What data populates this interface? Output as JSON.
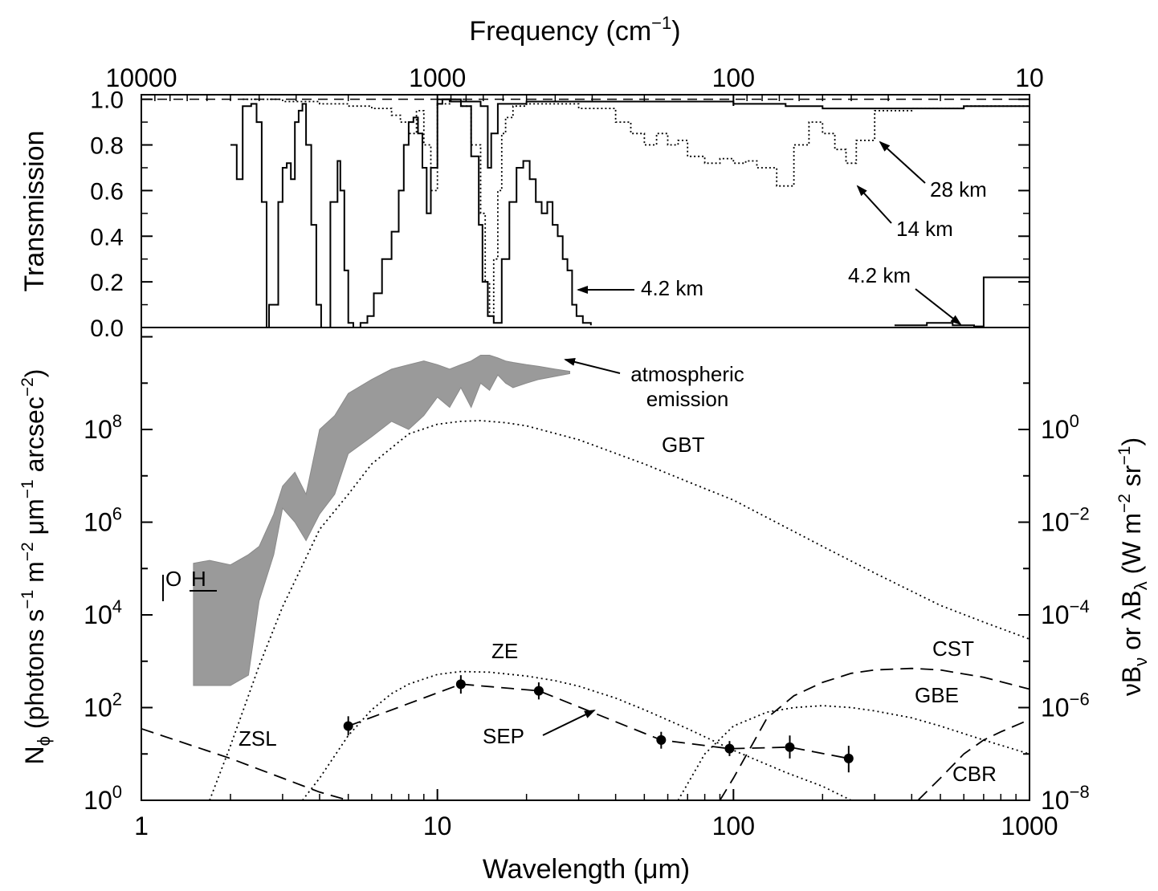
{
  "chart_data": [
    {
      "type": "line",
      "panel": "top",
      "xlabel_top": "Frequency (cm",
      "xlabel_top_sup": "−1",
      "xlabel_top_close": ")",
      "ylabel": "Transmission",
      "x_scale": "log",
      "xlim_um": [
        1,
        1000
      ],
      "ylim": [
        0.0,
        1.0
      ],
      "frequency_ticks": [
        "10000",
        "1000",
        "100",
        "10"
      ],
      "frequency_tick_values_cm-1": [
        10000,
        1000,
        100,
        10
      ],
      "y_ticks": [
        "0.0",
        "0.2",
        "0.4",
        "0.6",
        "0.8",
        "1.0"
      ],
      "y_tick_values": [
        0.0,
        0.2,
        0.4,
        0.6,
        0.8,
        1.0
      ],
      "series": [
        {
          "name": "4.2 km",
          "style": "solid",
          "x": [
            2.0,
            2.1,
            2.2,
            2.35,
            2.45,
            2.55,
            2.65,
            2.7,
            2.9,
            3.0,
            3.1,
            3.2,
            3.3,
            3.4,
            3.5,
            3.6,
            3.75,
            3.9,
            4.05,
            4.2,
            4.35,
            4.6,
            4.7,
            4.85,
            5.0,
            5.2,
            5.5,
            5.8,
            6.1,
            6.5,
            7.0,
            7.4,
            7.7,
            8.0,
            8.3,
            8.6,
            8.9,
            9.2,
            9.5,
            10.0,
            10.4,
            11.0,
            12.0,
            13.0,
            13.8,
            14.2,
            14.8,
            15.5,
            16.5,
            17.5,
            18.5,
            19.5,
            20.5,
            21.5,
            22.5,
            23.5,
            24.5,
            25.5,
            26.5,
            27.5,
            28.5,
            29.5,
            31.0,
            33.0
          ],
          "y": [
            0.8,
            0.65,
            0.97,
            0.98,
            0.9,
            0.55,
            0.0,
            0.1,
            0.55,
            0.7,
            0.72,
            0.65,
            0.9,
            0.95,
            0.98,
            0.8,
            0.45,
            0.1,
            0.0,
            0.0,
            0.55,
            0.73,
            0.6,
            0.25,
            0.02,
            0.0,
            0.02,
            0.05,
            0.15,
            0.3,
            0.42,
            0.6,
            0.8,
            0.9,
            0.92,
            0.85,
            0.7,
            0.5,
            0.7,
            0.98,
            1.0,
            0.99,
            0.97,
            0.75,
            0.45,
            0.2,
            0.05,
            0.02,
            0.3,
            0.55,
            0.7,
            0.73,
            0.65,
            0.55,
            0.5,
            0.55,
            0.45,
            0.4,
            0.3,
            0.25,
            0.1,
            0.05,
            0.02,
            0.01
          ],
          "x_far": [
            350,
            450,
            550,
            650,
            700,
            1000
          ],
          "y_far": [
            0.01,
            0.02,
            0.01,
            0.005,
            0.22,
            0.22
          ]
        },
        {
          "name": "14 km",
          "style": "dotted",
          "x": [
            2.2,
            3.0,
            4.0,
            5.0,
            6.0,
            7.0,
            7.5,
            8.0,
            8.5,
            9.0,
            9.5,
            10.0,
            11.0,
            12.0,
            13.0,
            14.0,
            14.5,
            15.0,
            15.5,
            16.0,
            16.5,
            17.0,
            18.0,
            20.0,
            25.0,
            30.0,
            40.0,
            45.0,
            50.0,
            55.0,
            60.0,
            65.0,
            70.0,
            80.0,
            90.0,
            100.0,
            110.0,
            120.0,
            140.0,
            160.0,
            180.0,
            200.0,
            220.0,
            240.0,
            260.0,
            300.0,
            400.0,
            600.0,
            800.0,
            1000.0
          ],
          "y": [
            1.0,
            0.99,
            0.98,
            0.97,
            0.96,
            0.93,
            0.9,
            0.85,
            0.95,
            0.8,
            0.6,
            0.98,
            0.99,
            0.97,
            0.8,
            0.5,
            0.2,
            0.05,
            0.3,
            0.6,
            0.85,
            0.92,
            0.97,
            0.98,
            0.98,
            0.96,
            0.9,
            0.85,
            0.8,
            0.85,
            0.8,
            0.82,
            0.75,
            0.72,
            0.74,
            0.72,
            0.73,
            0.7,
            0.62,
            0.8,
            0.9,
            0.85,
            0.78,
            0.72,
            0.82,
            0.95,
            0.96,
            0.97,
            0.97,
            0.97
          ]
        },
        {
          "name": "28 km",
          "style": "solid",
          "x": [
            10.0,
            12.0,
            14.0,
            14.8,
            15.2,
            16.0,
            20.0,
            40.0,
            100.0,
            150.0,
            200.0,
            300.0,
            400.0,
            600.0,
            800.0,
            1000.0
          ],
          "y": [
            1.0,
            0.99,
            0.97,
            0.7,
            0.85,
            0.98,
            0.99,
            0.99,
            0.98,
            0.97,
            0.96,
            0.96,
            0.96,
            0.97,
            0.97,
            0.97
          ]
        }
      ],
      "reference_line": {
        "y": 1.0,
        "style": "dashed"
      },
      "annotations": [
        "4.2 km",
        "28 km",
        "14 km",
        "4.2 km"
      ]
    },
    {
      "type": "line",
      "panel": "bottom",
      "xlabel": "Wavelength (μm)",
      "x_scale": "log",
      "y_scale": "log",
      "xlim": [
        1,
        1000
      ],
      "ylim": [
        1,
        10000000000.0
      ],
      "x_ticks": [
        "1",
        "10",
        "100",
        "1000"
      ],
      "x_tick_values": [
        1,
        10,
        100,
        1000
      ],
      "y_ticks_left": [
        {
          "base": "10",
          "exp": "0"
        },
        {
          "base": "10",
          "exp": "2"
        },
        {
          "base": "10",
          "exp": "4"
        },
        {
          "base": "10",
          "exp": "6"
        },
        {
          "base": "10",
          "exp": "8"
        }
      ],
      "y_tick_values_left": [
        1,
        100,
        10000,
        1000000,
        100000000
      ],
      "y_ticks_right": [
        {
          "base": "10",
          "exp": "−8"
        },
        {
          "base": "10",
          "exp": "−6"
        },
        {
          "base": "10",
          "exp": "−4"
        },
        {
          "base": "10",
          "exp": "−2"
        },
        {
          "base": "10",
          "exp": "0"
        }
      ],
      "y_tick_values_right": [
        1e-08,
        1e-06,
        0.0001,
        0.01,
        1
      ],
      "series": [
        {
          "name": "GBT",
          "style": "dotted",
          "x": [
            1.7,
            2.0,
            2.5,
            3.0,
            4.0,
            5.0,
            6.0,
            8.0,
            10.0,
            12.0,
            14.0,
            17.0,
            20.0,
            30.0,
            50.0,
            70.0,
            100.0,
            200.0,
            300.0,
            500.0,
            700.0,
            1000.0
          ],
          "y": [
            1.0,
            15,
            800,
            15000,
            700000,
            4000000,
            18000000,
            80000000,
            130000000,
            150000000,
            155000000,
            140000000,
            120000000,
            60000000,
            18000000,
            7500000,
            3000000,
            300000,
            80000,
            16000,
            7000,
            3000
          ]
        },
        {
          "name": "ZE",
          "style": "dotted",
          "x": [
            3.5,
            4.0,
            5.0,
            6.0,
            7.0,
            8.0,
            10.0,
            12.0,
            15.0,
            20.0,
            25.0,
            30.0,
            40.0,
            50.0,
            70.0,
            100.0,
            150.0,
            200.0,
            250.0
          ],
          "y": [
            1.0,
            3,
            25,
            90,
            200,
            320,
            520,
            600,
            580,
            480,
            380,
            290,
            160,
            90,
            35,
            12,
            4,
            2,
            1.0
          ]
        },
        {
          "name": "SEP",
          "style": "dashed",
          "x": [
            5.0,
            12.0,
            22.0,
            57.0,
            97.0,
            155.0,
            245.0
          ],
          "y": [
            40,
            320,
            230,
            20,
            13,
            14,
            8
          ],
          "errors_low": [
            25,
            200,
            150,
            13,
            9,
            8,
            4
          ],
          "errors_high": [
            65,
            500,
            350,
            30,
            19,
            25,
            15
          ]
        },
        {
          "name": "ZSL",
          "style": "dashed",
          "x": [
            1.0,
            2.0,
            3.0,
            4.0,
            5.0
          ],
          "y": [
            35,
            8,
            3,
            1.5,
            1.0
          ]
        },
        {
          "name": "GBE",
          "style": "dotted",
          "x": [
            65.0,
            80.0,
            100.0,
            130.0,
            160.0,
            200.0,
            250.0,
            300.0,
            400.0,
            500.0,
            700.0,
            1000.0
          ],
          "y": [
            1.0,
            10,
            40,
            80,
            100,
            110,
            100,
            85,
            60,
            40,
            20,
            10
          ]
        },
        {
          "name": "CST",
          "style": "dashed",
          "x": [
            90.0,
            100.0,
            130.0,
            160.0,
            200.0,
            250.0,
            300.0,
            400.0,
            500.0,
            700.0,
            1000.0
          ],
          "y": [
            1.0,
            3,
            60,
            180,
            350,
            550,
            650,
            700,
            650,
            450,
            250
          ]
        },
        {
          "name": "CBR",
          "style": "dashed",
          "x": [
            420.0,
            500.0,
            600.0,
            700.0,
            800.0,
            1000.0
          ],
          "y": [
            1.0,
            3,
            10,
            20,
            30,
            55
          ]
        },
        {
          "name": "atmospheric emission",
          "style": "filled",
          "x": [
            1.5,
            1.7,
            2.0,
            2.3,
            2.5,
            2.8,
            3.0,
            3.3,
            3.6,
            4.0,
            4.5,
            5.0,
            6.0,
            7.0,
            8.0,
            9.0,
            10.0,
            11.0,
            12.0,
            13.0,
            14.0,
            15.0,
            16.0,
            17.0,
            18.0,
            20.0,
            22.0,
            25.0,
            28.0
          ],
          "y_low": [
            300,
            300,
            300,
            500,
            20000,
            200000,
            2000000,
            1000000,
            400000,
            1500000,
            4000000,
            30000000,
            70000000,
            150000000,
            100000000,
            200000000,
            500000000,
            300000000,
            800000000,
            300000000,
            1000000000,
            700000000,
            1500000000,
            1000000000,
            800000000,
            1000000000,
            1200000000,
            1400000000,
            1600000000
          ],
          "y_high": [
            130000,
            150000,
            120000,
            200000,
            300000,
            1500000,
            6000000,
            12000000,
            4000000,
            100000000,
            200000000,
            600000000,
            1200000000,
            2000000000,
            2500000000,
            3000000000,
            2500000000,
            2000000000,
            2500000000,
            3000000000,
            4000000000,
            4000000000,
            3500000000,
            3000000000,
            2800000000,
            2500000000,
            2300000000,
            2000000000,
            1800000000
          ]
        }
      ],
      "annotations": [
        "atmospheric emission",
        "GBT",
        "ZE",
        "SEP",
        "ZSL",
        "CST",
        "GBE",
        "CBR",
        "OH"
      ]
    }
  ],
  "left_axis_label": {
    "prefix": "N",
    "prefix_sub": "ϕ",
    "text": " (photons s",
    "sup1": "−1",
    "text2": " m",
    "sup2": "−2",
    "text3": " μm",
    "sup3": "−1",
    "text4": " arcsec",
    "sup4": "−2",
    "text5": ")"
  },
  "right_axis_label": {
    "nu": "νB",
    "nu_sub": "ν",
    "or": " or ",
    "lambda": "λB",
    "lambda_sub": "λ",
    "units": " (W m",
    "sup1": "−2",
    "units2": " sr",
    "sup2": "−1",
    "close": ")"
  },
  "labels": {
    "atmospheric_emission_line1": "atmospheric",
    "atmospheric_emission_line2": "emission",
    "gbt": "GBT",
    "ze": "ZE",
    "sep": "SEP",
    "zsl": "ZSL",
    "cst": "CST",
    "gbe": "GBE",
    "cbr": "CBR",
    "oh_o": "O",
    "oh_h": "H",
    "t42_mid": "4.2 km",
    "t28": "28 km",
    "t14": "14 km",
    "t42_far": "4.2 km"
  }
}
